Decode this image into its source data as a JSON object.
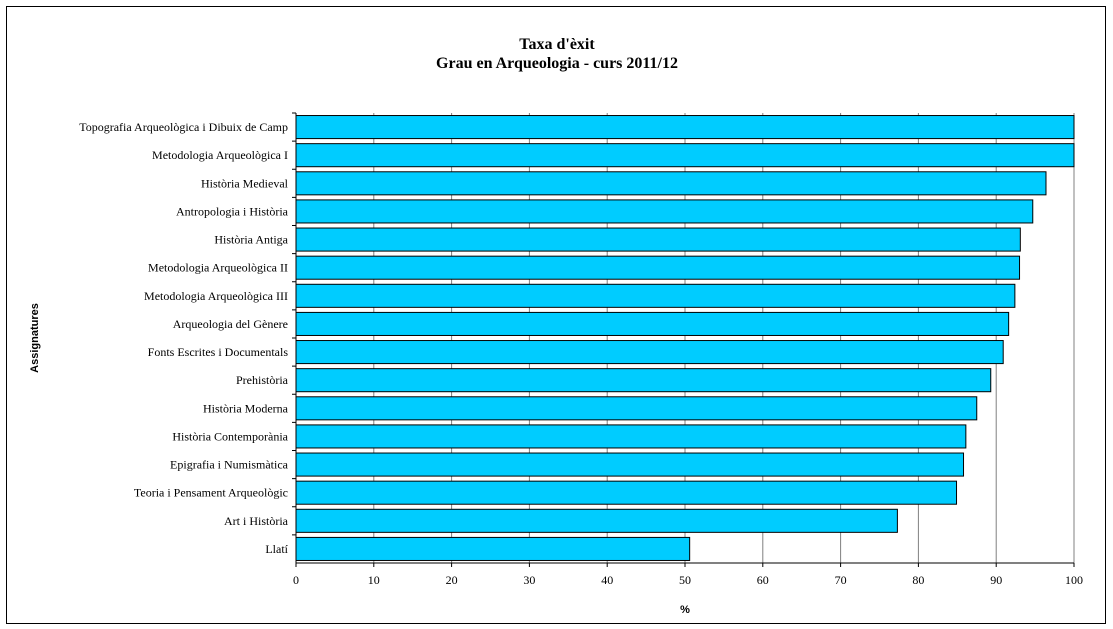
{
  "chart_data": {
    "type": "bar",
    "orientation": "horizontal",
    "title": "Taxa d'èxit",
    "subtitle": "Grau en Arqueologia - curs 2011/12",
    "xlabel": "%",
    "ylabel": "Assignatures",
    "xlim": [
      0,
      100
    ],
    "xticks": [
      0,
      10,
      20,
      30,
      40,
      50,
      60,
      70,
      80,
      90,
      100
    ],
    "grid": true,
    "bar_color": "#00ccff",
    "categories": [
      "Topografia Arqueològica i Dibuix de Camp",
      "Metodologia Arqueològica I",
      "Història Medieval",
      "Antropologia i Història",
      "Història Antiga",
      "Metodologia Arqueològica II",
      "Metodologia Arqueològica III",
      "Arqueologia del Gènere",
      "Fonts Escrites i Documentals",
      "Prehistòria",
      "Història Moderna",
      "Història Contemporània",
      "Epigrafia i Numismàtica",
      "Teoria i Pensament Arqueològic",
      "Art i Història",
      "Llatí"
    ],
    "values": [
      100,
      100,
      96.4,
      94.7,
      93.1,
      93.0,
      92.4,
      91.6,
      90.9,
      89.3,
      87.5,
      86.1,
      85.8,
      84.9,
      77.3,
      50.6
    ]
  }
}
